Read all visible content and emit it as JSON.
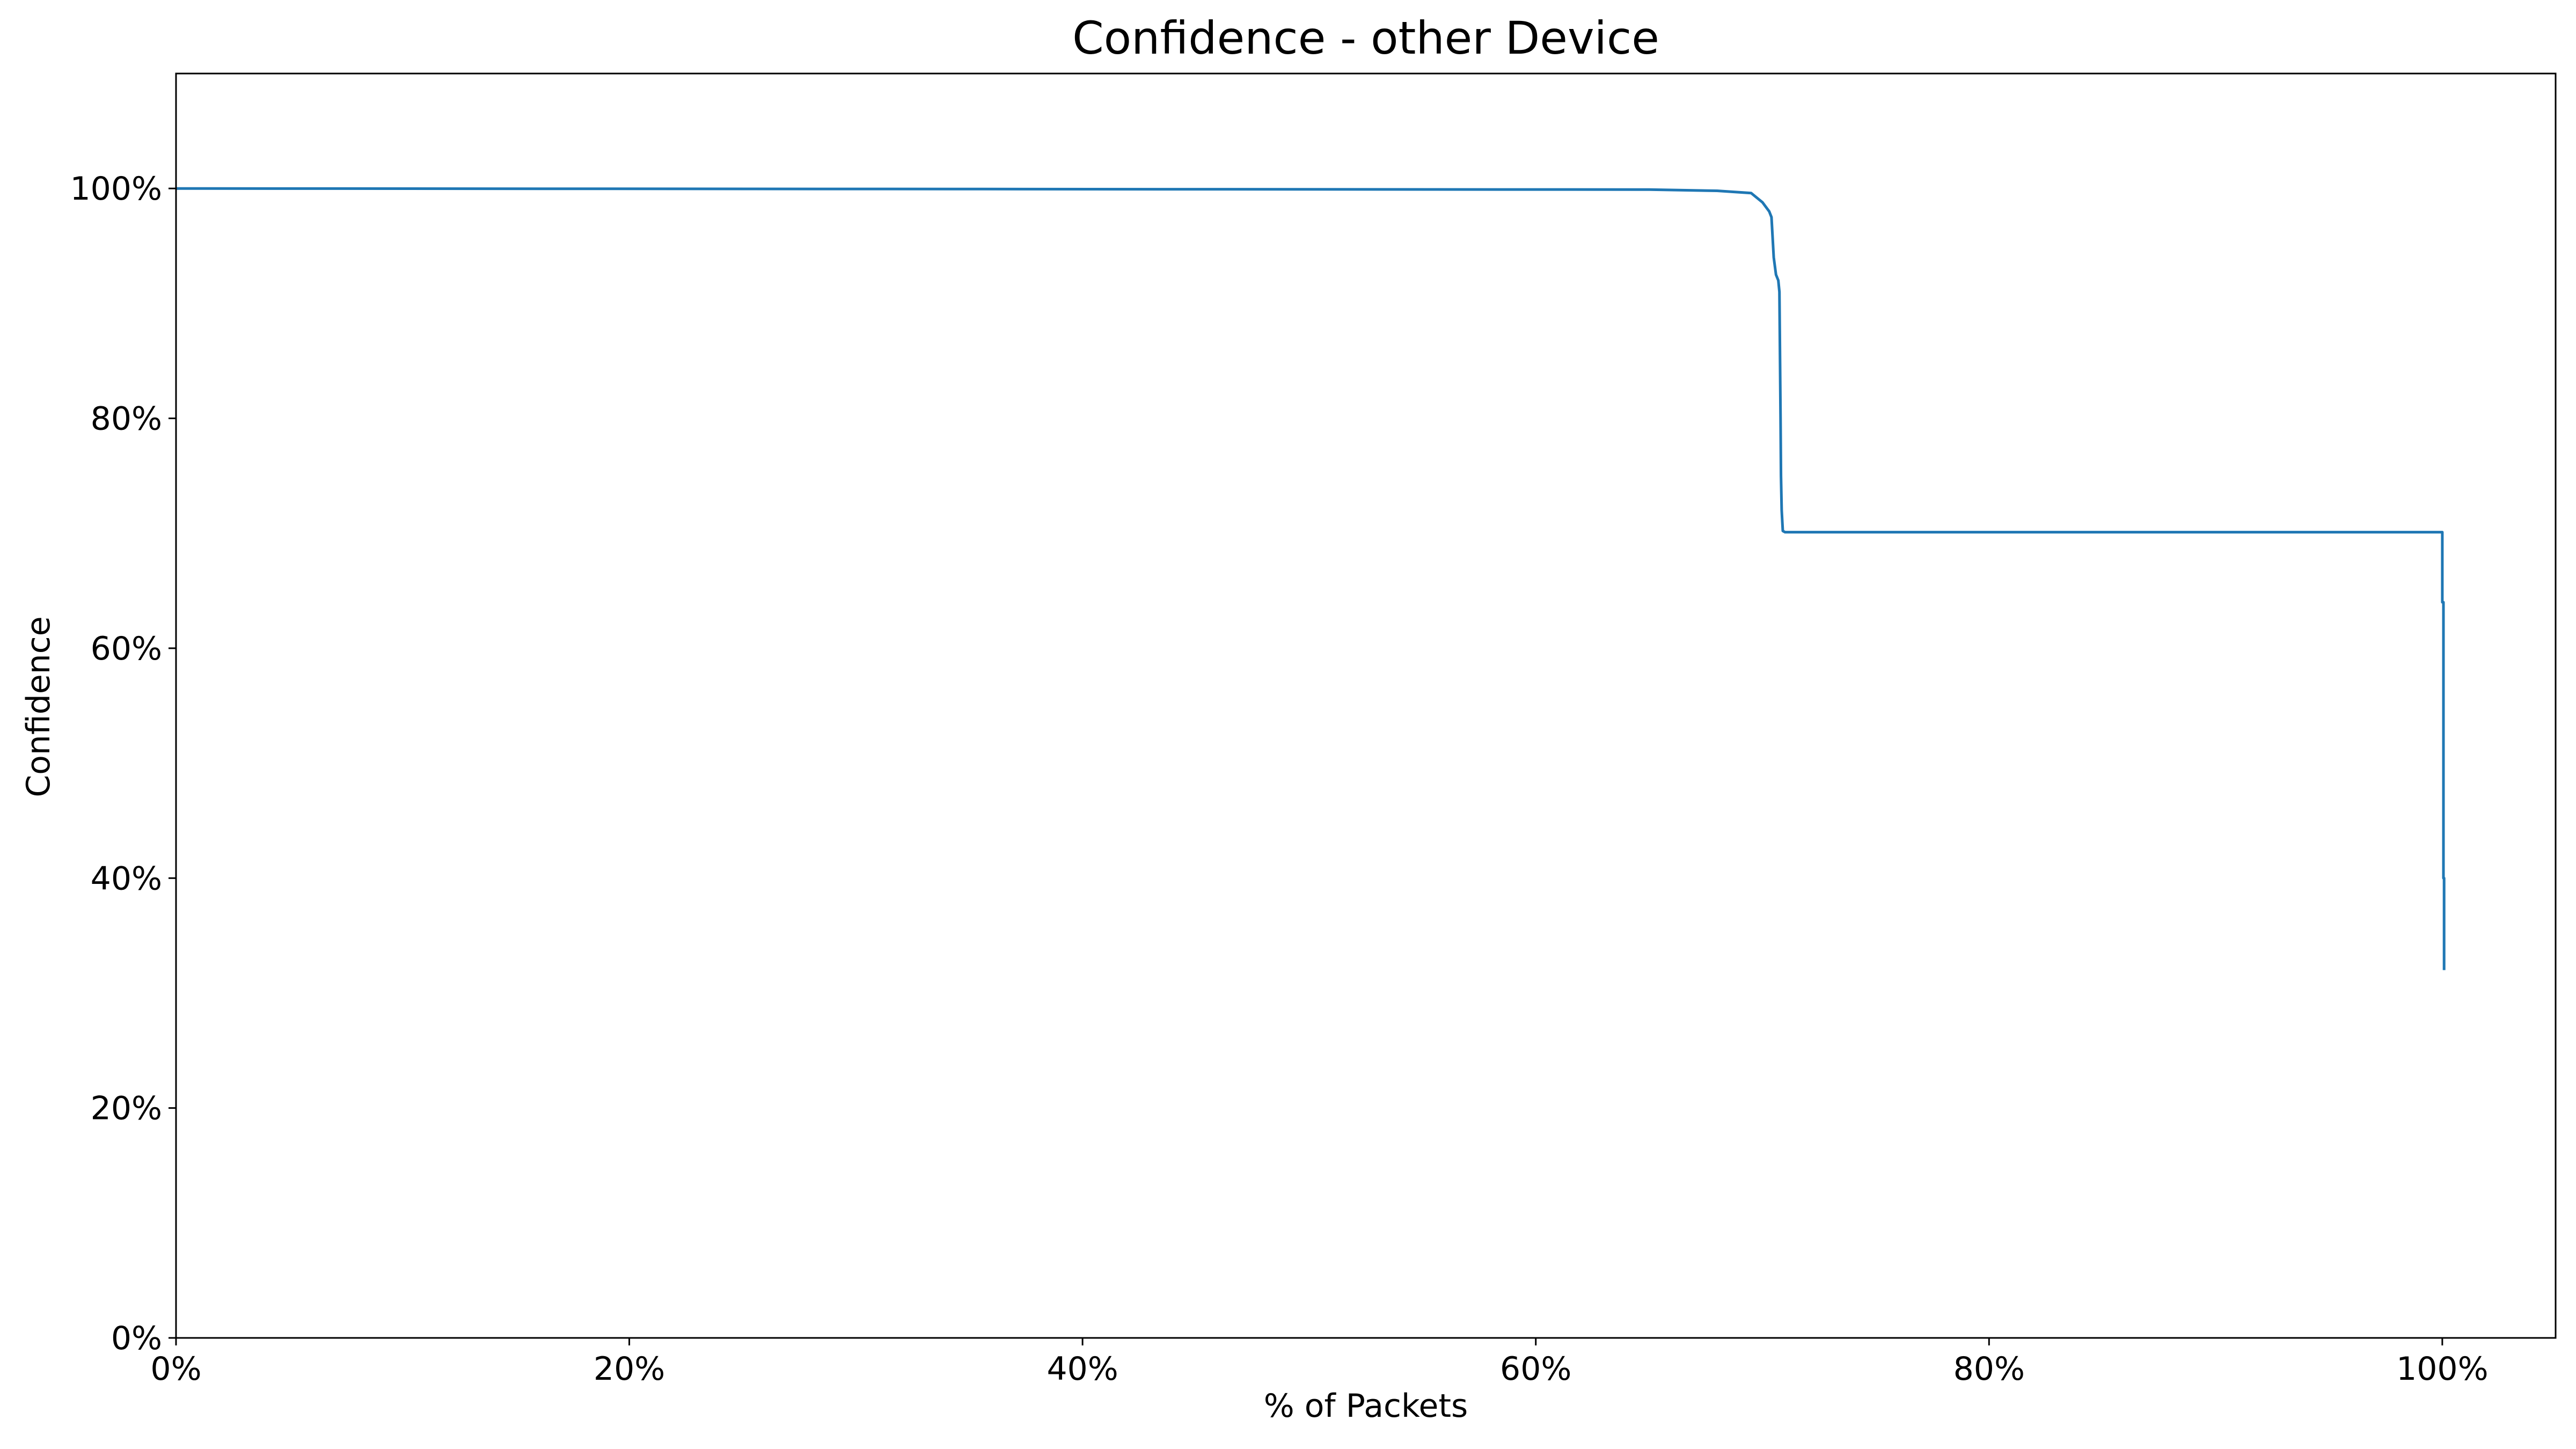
{
  "chart_data": {
    "type": "line",
    "title": "Confidence - other Device",
    "xlabel": "% of Packets",
    "ylabel": "Confidence",
    "xlim": [
      0,
      105
    ],
    "ylim": [
      0,
      110
    ],
    "grid": false,
    "x_ticks": [
      0,
      20,
      40,
      60,
      80,
      100
    ],
    "x_tick_labels": [
      "0%",
      "20%",
      "40%",
      "60%",
      "80%",
      "100%"
    ],
    "y_ticks": [
      0,
      20,
      40,
      60,
      80,
      100
    ],
    "y_tick_labels": [
      "0%",
      "20%",
      "40%",
      "60%",
      "80%",
      "100%"
    ],
    "series": [
      {
        "name": "Confidence",
        "color": "#1f77b4",
        "x": [
          0,
          35.6,
          65.0,
          68.0,
          69.5,
          70.0,
          70.3,
          70.4,
          70.5,
          70.6,
          70.7,
          70.75,
          70.8,
          70.82,
          70.85,
          70.9,
          71.0,
          100.0,
          100.0,
          100.05,
          100.05,
          100.08,
          100.08
        ],
        "y": [
          100,
          99.95,
          99.9,
          99.8,
          99.6,
          98.8,
          98.0,
          97.5,
          94.0,
          92.5,
          92.0,
          91.0,
          80.0,
          75.0,
          72.0,
          70.2,
          70.1,
          70.1,
          64.0,
          64.0,
          40.0,
          40.0,
          32.0
        ]
      }
    ]
  }
}
